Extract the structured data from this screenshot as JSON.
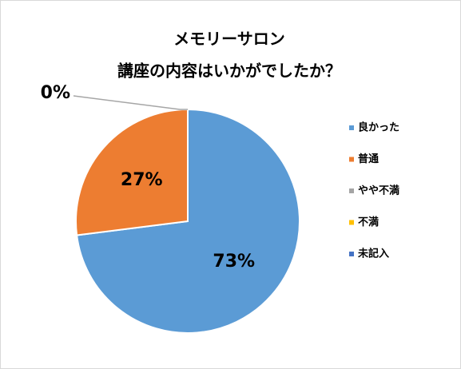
{
  "chart_data": {
    "type": "pie",
    "title": [
      "メモリーサロン",
      "講座の内容はいかがでしたか？"
    ],
    "categories": [
      "良かった",
      "普通",
      "やや不満",
      "不満",
      "未記入"
    ],
    "values": [
      73,
      27,
      0,
      0,
      0
    ],
    "value_labels": [
      "73%",
      "27%",
      "0%",
      null,
      null
    ],
    "colors": [
      "#5b9bd5",
      "#ed7d31",
      "#a5a5a5",
      "#ffc000",
      "#4472c4"
    ],
    "legend": "right"
  }
}
